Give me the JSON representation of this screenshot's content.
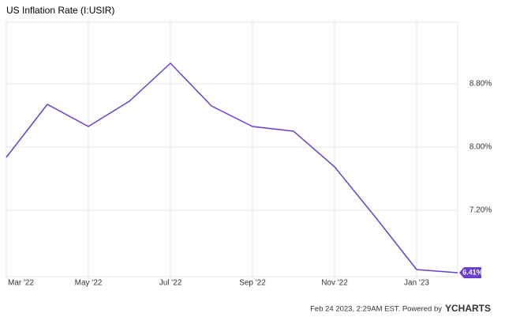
{
  "chart_data": {
    "type": "line",
    "title": "US Inflation Rate (I:USIR)",
    "categories": [
      "Mar '22",
      null,
      "May '22",
      null,
      "Jul '22",
      null,
      "Sep '22",
      null,
      "Nov '22",
      null,
      "Jan '23",
      null
    ],
    "series": [
      {
        "name": "US Inflation Rate",
        "color": "#6a3fd0",
        "values": [
          7.87,
          8.54,
          8.26,
          8.58,
          9.06,
          8.52,
          8.26,
          8.2,
          7.75,
          7.11,
          6.45,
          6.41
        ],
        "value_labels": [
          null,
          null,
          null,
          null,
          null,
          null,
          null,
          null,
          null,
          null,
          null,
          "6.41%"
        ]
      }
    ],
    "ylim": [
      6.36,
      9.58
    ],
    "yticks": [
      {
        "value": 7.2,
        "label": "7.20%"
      },
      {
        "value": 8.0,
        "label": "8.00%"
      },
      {
        "value": 8.8,
        "label": "8.80%"
      }
    ],
    "grid": true,
    "footer": {
      "timestamp": "Feb 24 2023, 2:29AM EST. Powered by",
      "brand": "YCHARTS"
    }
  }
}
